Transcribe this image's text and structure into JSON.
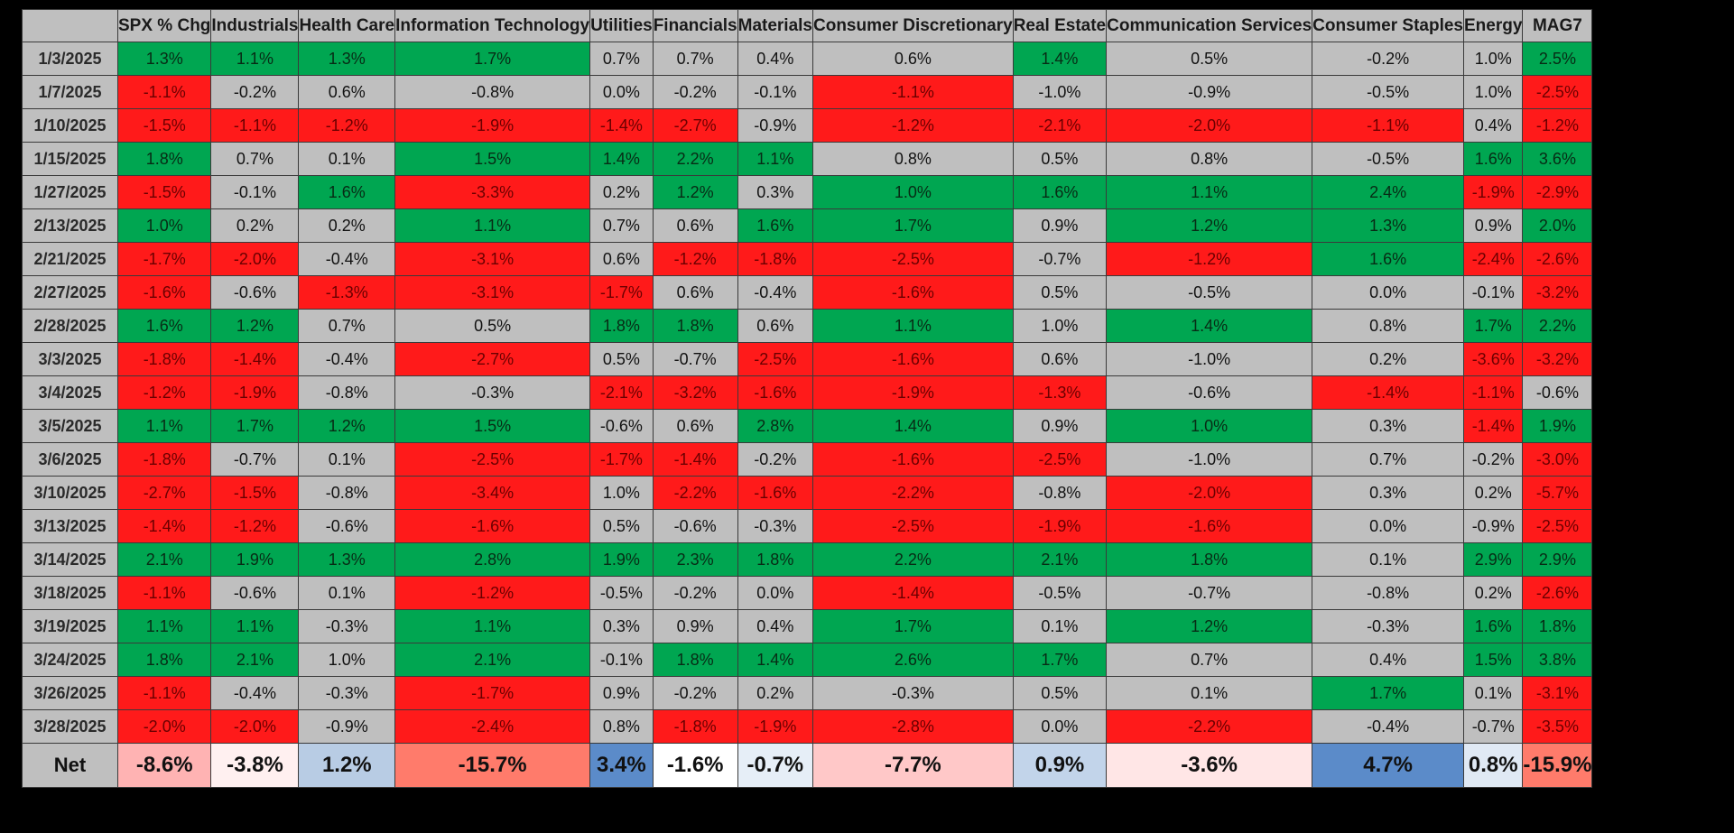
{
  "colors": {
    "positive": "#00a651",
    "negative": "#ff1a1a",
    "neutral": "#bfbfbf",
    "header": "#bfbfbf",
    "net_shades": [
      "#ffb3b3",
      "#fff0f0",
      "#b8cce4",
      "#ff7b6b",
      "#5b8bc9",
      "#ffffff",
      "#e6eef7",
      "#ffc8c8",
      "#c2d4ea",
      "#ffe6e6",
      "#5b8bc9",
      "#e0e9f4",
      "#ff7b6b"
    ]
  },
  "headers": [
    "",
    "SPX % Chg",
    "Industrials",
    "Health Care",
    "Information Technology",
    "Utilities",
    "Financials",
    "Materials",
    "Consumer Discretionary",
    "Real Estate",
    "Communication Services",
    "Consumer Staples",
    "Energy",
    "MAG7"
  ],
  "rows": [
    {
      "date": "1/3/2025",
      "values": [
        "1.3%",
        "1.1%",
        "1.3%",
        "1.7%",
        "0.7%",
        "0.7%",
        "0.4%",
        "0.6%",
        "1.4%",
        "0.5%",
        "-0.2%",
        "1.0%",
        "2.5%"
      ],
      "cells": [
        "g",
        "g",
        "g",
        "g",
        "n",
        "n",
        "n",
        "n",
        "g",
        "n",
        "n",
        "n",
        "g"
      ]
    },
    {
      "date": "1/7/2025",
      "values": [
        "-1.1%",
        "-0.2%",
        "0.6%",
        "-0.8%",
        "0.0%",
        "-0.2%",
        "-0.1%",
        "-1.1%",
        "-1.0%",
        "-0.9%",
        "-0.5%",
        "1.0%",
        "-2.5%"
      ],
      "cells": [
        "r",
        "n",
        "n",
        "n",
        "n",
        "n",
        "n",
        "r",
        "n",
        "n",
        "n",
        "n",
        "r"
      ]
    },
    {
      "date": "1/10/2025",
      "values": [
        "-1.5%",
        "-1.1%",
        "-1.2%",
        "-1.9%",
        "-1.4%",
        "-2.7%",
        "-0.9%",
        "-1.2%",
        "-2.1%",
        "-2.0%",
        "-1.1%",
        "0.4%",
        "-1.2%"
      ],
      "cells": [
        "r",
        "r",
        "r",
        "r",
        "r",
        "r",
        "n",
        "r",
        "r",
        "r",
        "r",
        "n",
        "r"
      ]
    },
    {
      "date": "1/15/2025",
      "values": [
        "1.8%",
        "0.7%",
        "0.1%",
        "1.5%",
        "1.4%",
        "2.2%",
        "1.1%",
        "0.8%",
        "0.5%",
        "0.8%",
        "-0.5%",
        "1.6%",
        "3.6%"
      ],
      "cells": [
        "g",
        "n",
        "n",
        "g",
        "g",
        "g",
        "g",
        "n",
        "n",
        "n",
        "n",
        "g",
        "g"
      ]
    },
    {
      "date": "1/27/2025",
      "values": [
        "-1.5%",
        "-0.1%",
        "1.6%",
        "-3.3%",
        "0.2%",
        "1.2%",
        "0.3%",
        "1.0%",
        "1.6%",
        "1.1%",
        "2.4%",
        "-1.9%",
        "-2.9%"
      ],
      "cells": [
        "r",
        "n",
        "g",
        "r",
        "n",
        "g",
        "n",
        "g",
        "g",
        "g",
        "g",
        "r",
        "r"
      ]
    },
    {
      "date": "2/13/2025",
      "values": [
        "1.0%",
        "0.2%",
        "0.2%",
        "1.1%",
        "0.7%",
        "0.6%",
        "1.6%",
        "1.7%",
        "0.9%",
        "1.2%",
        "1.3%",
        "0.9%",
        "2.0%"
      ],
      "cells": [
        "g",
        "n",
        "n",
        "g",
        "n",
        "n",
        "g",
        "g",
        "n",
        "g",
        "g",
        "n",
        "g"
      ]
    },
    {
      "date": "2/21/2025",
      "values": [
        "-1.7%",
        "-2.0%",
        "-0.4%",
        "-3.1%",
        "0.6%",
        "-1.2%",
        "-1.8%",
        "-2.5%",
        "-0.7%",
        "-1.2%",
        "1.6%",
        "-2.4%",
        "-2.6%"
      ],
      "cells": [
        "r",
        "r",
        "n",
        "r",
        "n",
        "r",
        "r",
        "r",
        "n",
        "r",
        "g",
        "r",
        "r"
      ]
    },
    {
      "date": "2/27/2025",
      "values": [
        "-1.6%",
        "-0.6%",
        "-1.3%",
        "-3.1%",
        "-1.7%",
        "0.6%",
        "-0.4%",
        "-1.6%",
        "0.5%",
        "-0.5%",
        "0.0%",
        "-0.1%",
        "-3.2%"
      ],
      "cells": [
        "r",
        "n",
        "r",
        "r",
        "r",
        "n",
        "n",
        "r",
        "n",
        "n",
        "n",
        "n",
        "r"
      ]
    },
    {
      "date": "2/28/2025",
      "values": [
        "1.6%",
        "1.2%",
        "0.7%",
        "0.5%",
        "1.8%",
        "1.8%",
        "0.6%",
        "1.1%",
        "1.0%",
        "1.4%",
        "0.8%",
        "1.7%",
        "2.2%"
      ],
      "cells": [
        "g",
        "g",
        "n",
        "n",
        "g",
        "g",
        "n",
        "g",
        "n",
        "g",
        "n",
        "g",
        "g"
      ]
    },
    {
      "date": "3/3/2025",
      "values": [
        "-1.8%",
        "-1.4%",
        "-0.4%",
        "-2.7%",
        "0.5%",
        "-0.7%",
        "-2.5%",
        "-1.6%",
        "0.6%",
        "-1.0%",
        "0.2%",
        "-3.6%",
        "-3.2%"
      ],
      "cells": [
        "r",
        "r",
        "n",
        "r",
        "n",
        "n",
        "r",
        "r",
        "n",
        "n",
        "n",
        "r",
        "r"
      ]
    },
    {
      "date": "3/4/2025",
      "values": [
        "-1.2%",
        "-1.9%",
        "-0.8%",
        "-0.3%",
        "-2.1%",
        "-3.2%",
        "-1.6%",
        "-1.9%",
        "-1.3%",
        "-0.6%",
        "-1.4%",
        "-1.1%",
        "-0.6%"
      ],
      "cells": [
        "r",
        "r",
        "n",
        "n",
        "r",
        "r",
        "r",
        "r",
        "r",
        "n",
        "r",
        "r",
        "n"
      ]
    },
    {
      "date": "3/5/2025",
      "values": [
        "1.1%",
        "1.7%",
        "1.2%",
        "1.5%",
        "-0.6%",
        "0.6%",
        "2.8%",
        "1.4%",
        "0.9%",
        "1.0%",
        "0.3%",
        "-1.4%",
        "1.9%"
      ],
      "cells": [
        "g",
        "g",
        "g",
        "g",
        "n",
        "n",
        "g",
        "g",
        "n",
        "g",
        "n",
        "r",
        "g"
      ]
    },
    {
      "date": "3/6/2025",
      "values": [
        "-1.8%",
        "-0.7%",
        "0.1%",
        "-2.5%",
        "-1.7%",
        "-1.4%",
        "-0.2%",
        "-1.6%",
        "-2.5%",
        "-1.0%",
        "0.7%",
        "-0.2%",
        "-3.0%"
      ],
      "cells": [
        "r",
        "n",
        "n",
        "r",
        "r",
        "r",
        "n",
        "r",
        "r",
        "n",
        "n",
        "n",
        "r"
      ]
    },
    {
      "date": "3/10/2025",
      "values": [
        "-2.7%",
        "-1.5%",
        "-0.8%",
        "-3.4%",
        "1.0%",
        "-2.2%",
        "-1.6%",
        "-2.2%",
        "-0.8%",
        "-2.0%",
        "0.3%",
        "0.2%",
        "-5.7%"
      ],
      "cells": [
        "r",
        "r",
        "n",
        "r",
        "n",
        "r",
        "r",
        "r",
        "n",
        "r",
        "n",
        "n",
        "r"
      ]
    },
    {
      "date": "3/13/2025",
      "values": [
        "-1.4%",
        "-1.2%",
        "-0.6%",
        "-1.6%",
        "0.5%",
        "-0.6%",
        "-0.3%",
        "-2.5%",
        "-1.9%",
        "-1.6%",
        "0.0%",
        "-0.9%",
        "-2.5%"
      ],
      "cells": [
        "r",
        "r",
        "n",
        "r",
        "n",
        "n",
        "n",
        "r",
        "r",
        "r",
        "n",
        "n",
        "r"
      ]
    },
    {
      "date": "3/14/2025",
      "values": [
        "2.1%",
        "1.9%",
        "1.3%",
        "2.8%",
        "1.9%",
        "2.3%",
        "1.8%",
        "2.2%",
        "2.1%",
        "1.8%",
        "0.1%",
        "2.9%",
        "2.9%"
      ],
      "cells": [
        "g",
        "g",
        "g",
        "g",
        "g",
        "g",
        "g",
        "g",
        "g",
        "g",
        "n",
        "g",
        "g"
      ]
    },
    {
      "date": "3/18/2025",
      "values": [
        "-1.1%",
        "-0.6%",
        "0.1%",
        "-1.2%",
        "-0.5%",
        "-0.2%",
        "0.0%",
        "-1.4%",
        "-0.5%",
        "-0.7%",
        "-0.8%",
        "0.2%",
        "-2.6%"
      ],
      "cells": [
        "r",
        "n",
        "n",
        "r",
        "n",
        "n",
        "n",
        "r",
        "n",
        "n",
        "n",
        "n",
        "r"
      ]
    },
    {
      "date": "3/19/2025",
      "values": [
        "1.1%",
        "1.1%",
        "-0.3%",
        "1.1%",
        "0.3%",
        "0.9%",
        "0.4%",
        "1.7%",
        "0.1%",
        "1.2%",
        "-0.3%",
        "1.6%",
        "1.8%"
      ],
      "cells": [
        "g",
        "g",
        "n",
        "g",
        "n",
        "n",
        "n",
        "g",
        "n",
        "g",
        "n",
        "g",
        "g"
      ]
    },
    {
      "date": "3/24/2025",
      "values": [
        "1.8%",
        "2.1%",
        "1.0%",
        "2.1%",
        "-0.1%",
        "1.8%",
        "1.4%",
        "2.6%",
        "1.7%",
        "0.7%",
        "0.4%",
        "1.5%",
        "3.8%"
      ],
      "cells": [
        "g",
        "g",
        "n",
        "g",
        "n",
        "g",
        "g",
        "g",
        "g",
        "n",
        "n",
        "g",
        "g"
      ]
    },
    {
      "date": "3/26/2025",
      "values": [
        "-1.1%",
        "-0.4%",
        "-0.3%",
        "-1.7%",
        "0.9%",
        "-0.2%",
        "0.2%",
        "-0.3%",
        "0.5%",
        "0.1%",
        "1.7%",
        "0.1%",
        "-3.1%"
      ],
      "cells": [
        "r",
        "n",
        "n",
        "r",
        "n",
        "n",
        "n",
        "n",
        "n",
        "n",
        "g",
        "n",
        "r"
      ]
    },
    {
      "date": "3/28/2025",
      "values": [
        "-2.0%",
        "-2.0%",
        "-0.9%",
        "-2.4%",
        "0.8%",
        "-1.8%",
        "-1.9%",
        "-2.8%",
        "0.0%",
        "-2.2%",
        "-0.4%",
        "-0.7%",
        "-3.5%"
      ],
      "cells": [
        "r",
        "r",
        "n",
        "r",
        "n",
        "r",
        "r",
        "r",
        "n",
        "r",
        "n",
        "n",
        "r"
      ]
    }
  ],
  "net": {
    "label": "Net",
    "values": [
      "-8.6%",
      "-3.8%",
      "1.2%",
      "-15.7%",
      "3.4%",
      "-1.6%",
      "-0.7%",
      "-7.7%",
      "0.9%",
      "-3.6%",
      "4.7%",
      "0.8%",
      "-15.9%"
    ]
  }
}
